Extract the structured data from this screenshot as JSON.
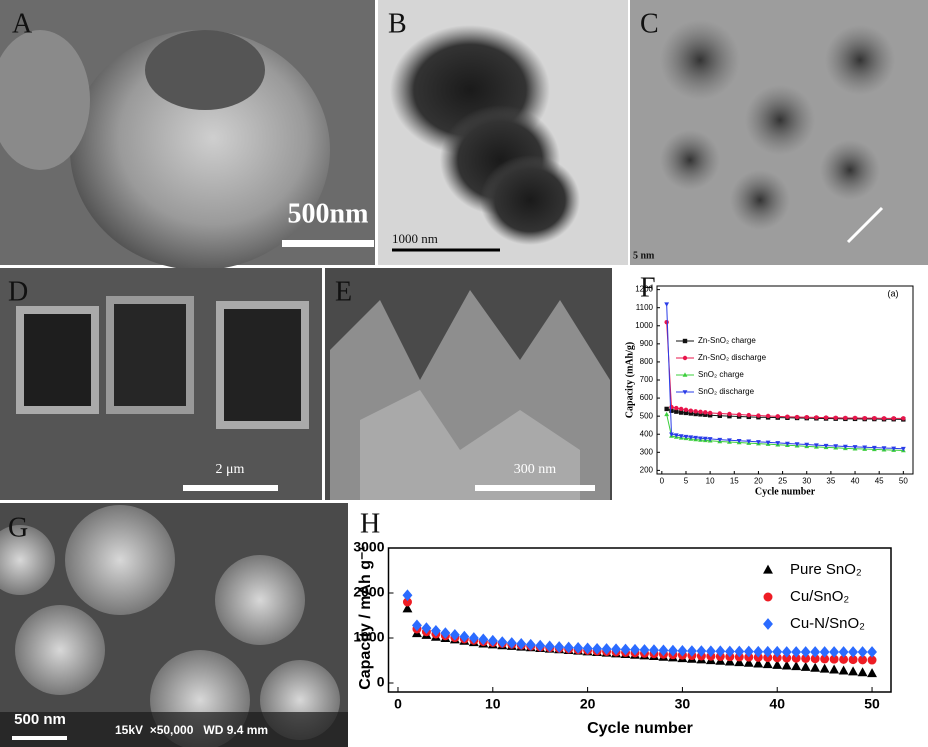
{
  "panels": [
    {
      "label": "A",
      "scale_bar": "500nm"
    },
    {
      "label": "B",
      "scale_bar": "1000 nm"
    },
    {
      "label": "C",
      "scale_bar": "5 nm"
    },
    {
      "label": "D",
      "scale_bar": "2 μm"
    },
    {
      "label": "E",
      "scale_bar": "300 nm"
    },
    {
      "label": "F"
    },
    {
      "label": "G",
      "scale_bar": "500 nm",
      "info": "15kV  ×50,000   WD 9.4 mm"
    },
    {
      "label": "H"
    }
  ],
  "chart_data": [
    {
      "type": "line",
      "annotation": "(a)",
      "x_label": "Cycle number",
      "y_label": "Capacity (mAh/g)",
      "xlim": [
        -1,
        52
      ],
      "xticks": [
        0,
        5,
        10,
        15,
        20,
        25,
        30,
        35,
        40,
        45,
        50
      ],
      "ylim": [
        180,
        1220
      ],
      "yticks": [
        200,
        300,
        400,
        500,
        600,
        700,
        800,
        900,
        1000,
        1100,
        1200
      ],
      "x": [
        1,
        2,
        3,
        4,
        5,
        6,
        7,
        8,
        9,
        10,
        12,
        14,
        16,
        18,
        20,
        22,
        24,
        26,
        28,
        30,
        32,
        34,
        36,
        38,
        40,
        42,
        44,
        46,
        48,
        50
      ],
      "series": [
        {
          "name": "Zn-SnO₂ charge",
          "color": "#111111",
          "marker": "square",
          "values": [
            540,
            530,
            525,
            520,
            518,
            515,
            512,
            510,
            508,
            505,
            502,
            500,
            498,
            496,
            494,
            493,
            492,
            491,
            490,
            489,
            488,
            487,
            486,
            485,
            485,
            484,
            484,
            483,
            483,
            482
          ]
        },
        {
          "name": "Zn-SnO₂ discharge",
          "color": "#e8154b",
          "marker": "circle",
          "values": [
            1020,
            550,
            545,
            540,
            535,
            530,
            527,
            524,
            521,
            518,
            515,
            512,
            509,
            506,
            503,
            501,
            499,
            497,
            495,
            494,
            493,
            492,
            491,
            490,
            490,
            489,
            489,
            488,
            488,
            488
          ]
        },
        {
          "name": "SnO₂ charge",
          "color": "#3ccf3c",
          "marker": "triangle",
          "values": [
            510,
            390,
            385,
            380,
            377,
            374,
            371,
            368,
            366,
            364,
            360,
            357,
            354,
            351,
            348,
            345,
            342,
            339,
            336,
            333,
            330,
            327,
            325,
            322,
            320,
            318,
            316,
            314,
            312,
            310
          ]
        },
        {
          "name": "SnO₂ discharge",
          "color": "#2a3ce8",
          "marker": "triangle-down",
          "values": [
            1120,
            400,
            395,
            390,
            387,
            384,
            381,
            378,
            376,
            374,
            370,
            367,
            364,
            361,
            358,
            355,
            352,
            349,
            346,
            343,
            340,
            337,
            335,
            332,
            330,
            328,
            326,
            324,
            322,
            320
          ]
        }
      ]
    },
    {
      "type": "scatter",
      "x_label": "Cycle number",
      "y_label": "Capacity / mAh g⁻¹",
      "xlim": [
        -1,
        52
      ],
      "xticks": [
        0,
        10,
        20,
        30,
        40,
        50
      ],
      "ylim": [
        -200,
        3000
      ],
      "yticks": [
        0,
        1000,
        2000,
        3000
      ],
      "x": [
        1,
        2,
        3,
        4,
        5,
        6,
        7,
        8,
        9,
        10,
        11,
        12,
        13,
        14,
        15,
        16,
        17,
        18,
        19,
        20,
        21,
        22,
        23,
        24,
        25,
        26,
        27,
        28,
        29,
        30,
        31,
        32,
        33,
        34,
        35,
        36,
        37,
        38,
        39,
        40,
        41,
        42,
        43,
        44,
        45,
        46,
        47,
        48,
        49,
        50
      ],
      "series": [
        {
          "name": "Pure SnO₂",
          "color": "#000000",
          "marker": "triangle",
          "values": [
            1650,
            1100,
            1060,
            1020,
            990,
            960,
            930,
            900,
            870,
            850,
            830,
            815,
            800,
            785,
            770,
            755,
            740,
            725,
            710,
            695,
            680,
            665,
            650,
            635,
            620,
            605,
            590,
            575,
            560,
            545,
            530,
            515,
            500,
            485,
            470,
            455,
            440,
            425,
            410,
            395,
            380,
            365,
            350,
            330,
            310,
            290,
            270,
            250,
            230,
            210
          ]
        },
        {
          "name": "Cu/SnO₂",
          "color": "#ee1c24",
          "marker": "circle",
          "values": [
            1800,
            1200,
            1140,
            1090,
            1050,
            1010,
            980,
            950,
            920,
            900,
            880,
            860,
            840,
            820,
            800,
            785,
            770,
            755,
            740,
            725,
            710,
            700,
            690,
            680,
            670,
            660,
            650,
            640,
            630,
            620,
            610,
            600,
            595,
            590,
            585,
            580,
            575,
            570,
            565,
            560,
            555,
            550,
            545,
            540,
            535,
            530,
            525,
            520,
            515,
            510
          ]
        },
        {
          "name": "Cu-N/SnO₂",
          "color": "#2b6bff",
          "marker": "diamond",
          "values": [
            1950,
            1280,
            1220,
            1160,
            1110,
            1070,
            1030,
            1000,
            970,
            940,
            910,
            890,
            870,
            850,
            830,
            815,
            800,
            790,
            780,
            770,
            760,
            755,
            750,
            745,
            740,
            735,
            730,
            725,
            720,
            715,
            710,
            710,
            705,
            705,
            700,
            700,
            700,
            695,
            695,
            695,
            690,
            690,
            690,
            690,
            690,
            690,
            690,
            690,
            690,
            690
          ]
        }
      ]
    }
  ]
}
